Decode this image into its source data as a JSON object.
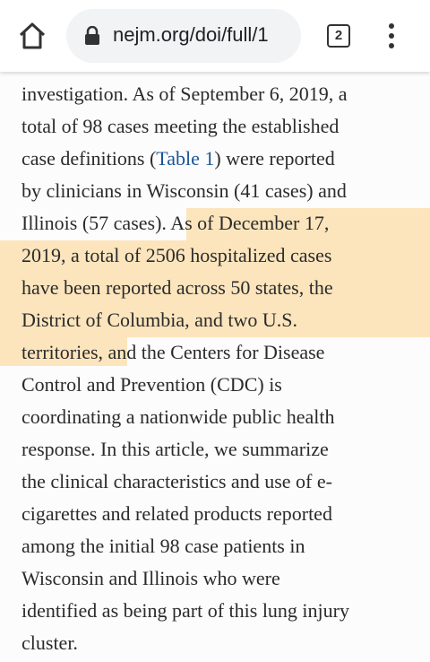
{
  "browser": {
    "url": "nejm.org/doi/full/1",
    "tab_count": "2"
  },
  "article": {
    "lines": [
      [
        "investigation. As of September 6, 2019, a"
      ],
      [
        "total of 98 cases meeting the established"
      ],
      [
        "case definitions (",
        "Table 1",
        ") were reported"
      ],
      [
        "by clinicians in Wisconsin (41 cases) and"
      ],
      [
        "Illinois (57 cases).",
        " As of December 17,"
      ],
      [
        "2019, a total of 2506 hospitalized cases"
      ],
      [
        "have been reported across 50 states, the"
      ],
      [
        "District of Columbia, and two U.S."
      ],
      [
        "territories,",
        " and the Centers for Disease"
      ],
      [
        "Control and Prevention (CDC) is"
      ],
      [
        "coordinating a nationwide public health"
      ],
      [
        "response. In this article, we summarize"
      ],
      [
        "the clinical characteristics and use of e-"
      ],
      [
        "cigarettes and related products reported"
      ],
      [
        "among the initial 98 case patients in"
      ],
      [
        "Wisconsin and Illinois who were"
      ],
      [
        "identified as being part of this lung injury"
      ],
      [
        "cluster."
      ]
    ]
  }
}
